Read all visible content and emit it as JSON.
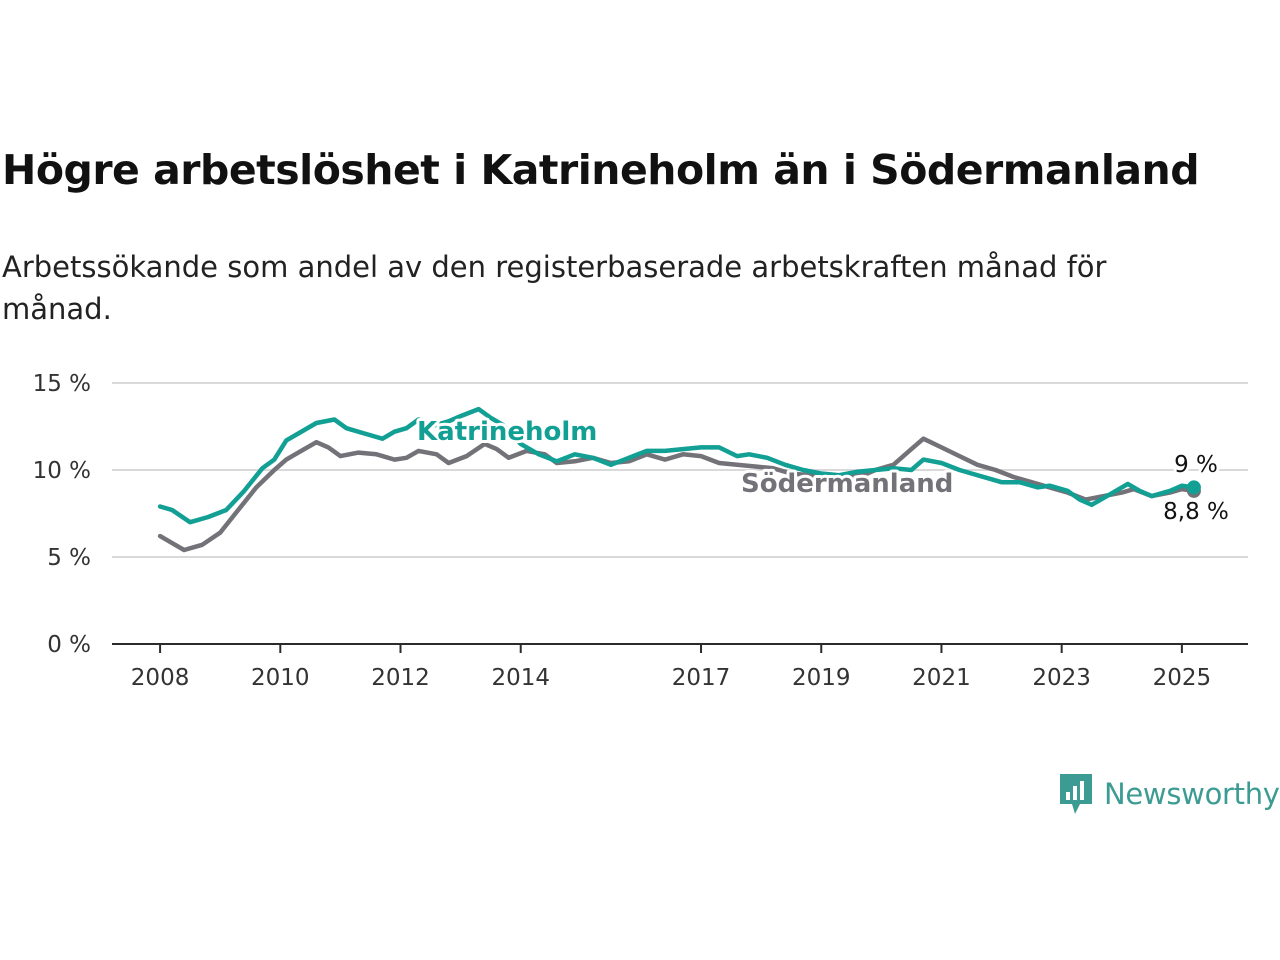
{
  "title": "Högre arbetslöshet i Katrineholm än i Södermanland",
  "subtitle": "Arbetssökande som andel av den registerbaserade arbetskraften månad för månad.",
  "brand": {
    "name": "Newsworthy",
    "icon": "chart-bubble-icon",
    "color": "#3c9b92"
  },
  "chart_data": {
    "type": "line",
    "title": "Högre arbetslöshet i Katrineholm än i Södermanland",
    "subtitle": "Arbetssökande som andel av den registerbaserade arbetskraften månad för månad.",
    "ylim": [
      0,
      15
    ],
    "y_ticks": [
      0,
      5,
      10,
      15
    ],
    "y_tick_labels": [
      "0 %",
      "5 %",
      "10 %",
      "15 %"
    ],
    "x_range": [
      2007.2,
      2026.1
    ],
    "x_ticks": [
      2008,
      2010,
      2012,
      2014,
      2017,
      2019,
      2021,
      2023,
      2025
    ],
    "x_tick_labels": [
      "2008",
      "2010",
      "2012",
      "2014",
      "2017",
      "2019",
      "2021",
      "2023",
      "2025"
    ],
    "grid": "horizontal",
    "legend": "direct labels",
    "series": [
      {
        "name": "Katrineholm",
        "color": "#129f94",
        "end_label": "9 %",
        "points": [
          [
            2008.0,
            7.9
          ],
          [
            2008.2,
            7.7
          ],
          [
            2008.5,
            7.0
          ],
          [
            2008.8,
            7.3
          ],
          [
            2009.1,
            7.7
          ],
          [
            2009.4,
            8.8
          ],
          [
            2009.7,
            10.1
          ],
          [
            2009.9,
            10.6
          ],
          [
            2010.1,
            11.7
          ],
          [
            2010.3,
            12.1
          ],
          [
            2010.6,
            12.7
          ],
          [
            2010.9,
            12.9
          ],
          [
            2011.1,
            12.4
          ],
          [
            2011.4,
            12.1
          ],
          [
            2011.7,
            11.8
          ],
          [
            2011.9,
            12.2
          ],
          [
            2012.1,
            12.4
          ],
          [
            2012.3,
            12.9
          ],
          [
            2012.5,
            12.5
          ],
          [
            2012.8,
            12.8
          ],
          [
            2013.0,
            13.1
          ],
          [
            2013.3,
            13.5
          ],
          [
            2013.5,
            13.0
          ],
          [
            2013.7,
            12.6
          ],
          [
            2014.0,
            11.5
          ],
          [
            2014.3,
            10.9
          ],
          [
            2014.6,
            10.5
          ],
          [
            2014.9,
            10.9
          ],
          [
            2015.2,
            10.7
          ],
          [
            2015.5,
            10.3
          ],
          [
            2015.8,
            10.7
          ],
          [
            2016.1,
            11.1
          ],
          [
            2016.4,
            11.1
          ],
          [
            2016.7,
            11.2
          ],
          [
            2017.0,
            11.3
          ],
          [
            2017.3,
            11.3
          ],
          [
            2017.6,
            10.8
          ],
          [
            2017.8,
            10.9
          ],
          [
            2018.1,
            10.7
          ],
          [
            2018.4,
            10.3
          ],
          [
            2018.7,
            10.0
          ],
          [
            2019.0,
            9.8
          ],
          [
            2019.3,
            9.7
          ],
          [
            2019.6,
            9.9
          ],
          [
            2019.9,
            10.0
          ],
          [
            2020.2,
            10.1
          ],
          [
            2020.5,
            10.0
          ],
          [
            2020.7,
            10.6
          ],
          [
            2021.0,
            10.4
          ],
          [
            2021.3,
            10.0
          ],
          [
            2021.5,
            9.8
          ],
          [
            2021.8,
            9.5
          ],
          [
            2022.0,
            9.3
          ],
          [
            2022.3,
            9.3
          ],
          [
            2022.6,
            9.0
          ],
          [
            2022.8,
            9.1
          ],
          [
            2023.1,
            8.8
          ],
          [
            2023.3,
            8.3
          ],
          [
            2023.5,
            8.0
          ],
          [
            2023.8,
            8.6
          ],
          [
            2024.1,
            9.2
          ],
          [
            2024.3,
            8.8
          ],
          [
            2024.5,
            8.5
          ],
          [
            2024.8,
            8.8
          ],
          [
            2025.0,
            9.1
          ],
          [
            2025.2,
            9.0
          ]
        ]
      },
      {
        "name": "Södermanland",
        "color": "#727278",
        "end_label": "8,8 %",
        "points": [
          [
            2008.0,
            6.2
          ],
          [
            2008.2,
            5.8
          ],
          [
            2008.4,
            5.4
          ],
          [
            2008.7,
            5.7
          ],
          [
            2009.0,
            6.4
          ],
          [
            2009.3,
            7.7
          ],
          [
            2009.6,
            9.0
          ],
          [
            2009.9,
            10.0
          ],
          [
            2010.1,
            10.6
          ],
          [
            2010.3,
            11.0
          ],
          [
            2010.6,
            11.6
          ],
          [
            2010.8,
            11.3
          ],
          [
            2011.0,
            10.8
          ],
          [
            2011.3,
            11.0
          ],
          [
            2011.6,
            10.9
          ],
          [
            2011.9,
            10.6
          ],
          [
            2012.1,
            10.7
          ],
          [
            2012.3,
            11.1
          ],
          [
            2012.6,
            10.9
          ],
          [
            2012.8,
            10.4
          ],
          [
            2013.1,
            10.8
          ],
          [
            2013.4,
            11.5
          ],
          [
            2013.6,
            11.2
          ],
          [
            2013.8,
            10.7
          ],
          [
            2014.1,
            11.1
          ],
          [
            2014.4,
            10.9
          ],
          [
            2014.6,
            10.4
          ],
          [
            2014.9,
            10.5
          ],
          [
            2015.2,
            10.7
          ],
          [
            2015.5,
            10.4
          ],
          [
            2015.8,
            10.5
          ],
          [
            2016.1,
            10.9
          ],
          [
            2016.4,
            10.6
          ],
          [
            2016.7,
            10.9
          ],
          [
            2017.0,
            10.8
          ],
          [
            2017.3,
            10.4
          ],
          [
            2017.6,
            10.3
          ],
          [
            2017.9,
            10.2
          ],
          [
            2018.2,
            10.1
          ],
          [
            2018.5,
            9.8
          ],
          [
            2018.8,
            9.7
          ],
          [
            2019.1,
            9.6
          ],
          [
            2019.4,
            9.6
          ],
          [
            2019.7,
            9.7
          ],
          [
            2019.9,
            10.0
          ],
          [
            2020.2,
            10.3
          ],
          [
            2020.5,
            11.2
          ],
          [
            2020.7,
            11.8
          ],
          [
            2021.0,
            11.3
          ],
          [
            2021.3,
            10.8
          ],
          [
            2021.6,
            10.3
          ],
          [
            2021.9,
            10.0
          ],
          [
            2022.2,
            9.6
          ],
          [
            2022.5,
            9.3
          ],
          [
            2022.8,
            9.0
          ],
          [
            2023.1,
            8.7
          ],
          [
            2023.4,
            8.3
          ],
          [
            2023.7,
            8.5
          ],
          [
            2024.0,
            8.7
          ],
          [
            2024.2,
            8.9
          ],
          [
            2024.5,
            8.5
          ],
          [
            2024.8,
            8.7
          ],
          [
            2025.0,
            8.9
          ],
          [
            2025.2,
            8.8
          ]
        ]
      }
    ]
  }
}
